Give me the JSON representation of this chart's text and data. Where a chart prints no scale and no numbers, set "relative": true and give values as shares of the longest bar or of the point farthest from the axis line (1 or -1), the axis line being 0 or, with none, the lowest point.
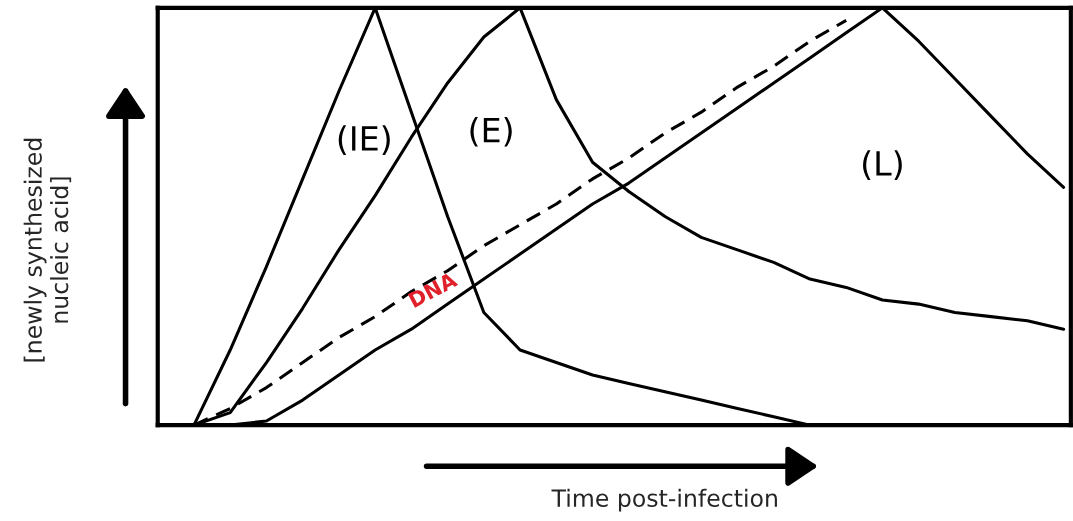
{
  "chart_data": {
    "type": "line",
    "relative": true,
    "xlabel": "Time post-infection",
    "ylabel": "[newly synthesized\nnucleic acid]",
    "categories": [
      null,
      null,
      null,
      null,
      null,
      null,
      null,
      null,
      null,
      null,
      null,
      null,
      null,
      null,
      null,
      null,
      null,
      null,
      null,
      null,
      null,
      null,
      null,
      null,
      null,
      null
    ],
    "series": [
      {
        "name": "(IE)",
        "color": "#000000",
        "line_style": "solid",
        "values": [
          null,
          0,
          0.18,
          0.38,
          0.59,
          0.8,
          1.0,
          0.75,
          0.5,
          0.27,
          0.18,
          0.15,
          0.12,
          0.1,
          0.08,
          0.06,
          0.04,
          0.02,
          0,
          null,
          null,
          null,
          null,
          null,
          null,
          null
        ]
      },
      {
        "name": "(E)",
        "color": "#000000",
        "line_style": "solid",
        "values": [
          null,
          0,
          0.03,
          0.15,
          0.28,
          0.42,
          0.55,
          0.69,
          0.82,
          0.93,
          1.0,
          0.78,
          0.63,
          0.56,
          0.5,
          0.45,
          0.42,
          0.39,
          0.35,
          0.33,
          0.3,
          0.29,
          0.27,
          0.26,
          0.25,
          0.23
        ]
      },
      {
        "name": "(L)",
        "color": "#000000",
        "line_style": "solid",
        "values": [
          null,
          0,
          0,
          0.01,
          0.06,
          0.12,
          0.18,
          0.23,
          0.29,
          0.35,
          0.41,
          0.47,
          0.53,
          0.58,
          0.64,
          0.7,
          0.76,
          0.82,
          0.88,
          0.94,
          1.0,
          0.92,
          0.83,
          0.74,
          0.65,
          0.57
        ]
      },
      {
        "name": "DNA",
        "color": "#000000",
        "line_style": "dashed",
        "values": [
          null,
          0,
          0.04,
          0.09,
          0.15,
          0.21,
          0.26,
          0.32,
          0.37,
          0.43,
          0.48,
          0.53,
          0.59,
          0.64,
          0.7,
          0.75,
          0.81,
          0.86,
          0.92,
          0.97,
          null,
          null,
          null,
          null,
          null,
          null
        ]
      }
    ],
    "legend": false
  }
}
